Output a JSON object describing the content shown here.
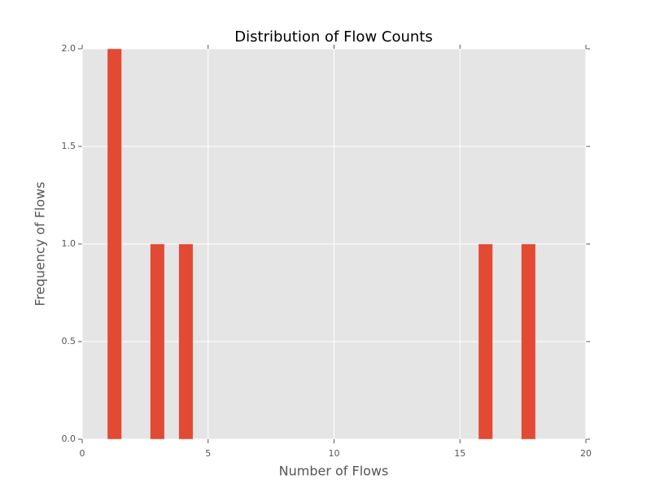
{
  "chart_data": {
    "type": "histogram",
    "title": "Distribution of Flow Counts",
    "x_label": "Number of Flows",
    "y_label": "Frequency of Flows",
    "bins": [
      1,
      1.567,
      2.133,
      2.7,
      3.267,
      3.833,
      4.4,
      4.967,
      5.533,
      6.1,
      6.667,
      7.233,
      7.8,
      8.367,
      8.933,
      9.5,
      10.067,
      10.633,
      11.2,
      11.767,
      12.333,
      12.9,
      13.467,
      14.033,
      14.6,
      15.167,
      15.733,
      16.3,
      16.867,
      17.433,
      18
    ],
    "counts": [
      2,
      0,
      0,
      1,
      0,
      1,
      0,
      0,
      0,
      0,
      0,
      0,
      0,
      0,
      0,
      0,
      0,
      0,
      0,
      0,
      0,
      0,
      0,
      0,
      0,
      0,
      1,
      0,
      0,
      1
    ],
    "color": "#e24a33",
    "xlim": [
      0,
      20
    ],
    "xticks": [
      0,
      5,
      10,
      15,
      20
    ],
    "ylim": [
      0,
      2
    ],
    "yticks": [
      {
        "value": 0,
        "label": "0.0"
      },
      {
        "value": 0.5,
        "label": "0.5"
      },
      {
        "value": 1,
        "label": "1.0"
      },
      {
        "value": 1.5,
        "label": "1.5"
      },
      {
        "value": 2,
        "label": "2.0"
      }
    ],
    "grid": true
  }
}
